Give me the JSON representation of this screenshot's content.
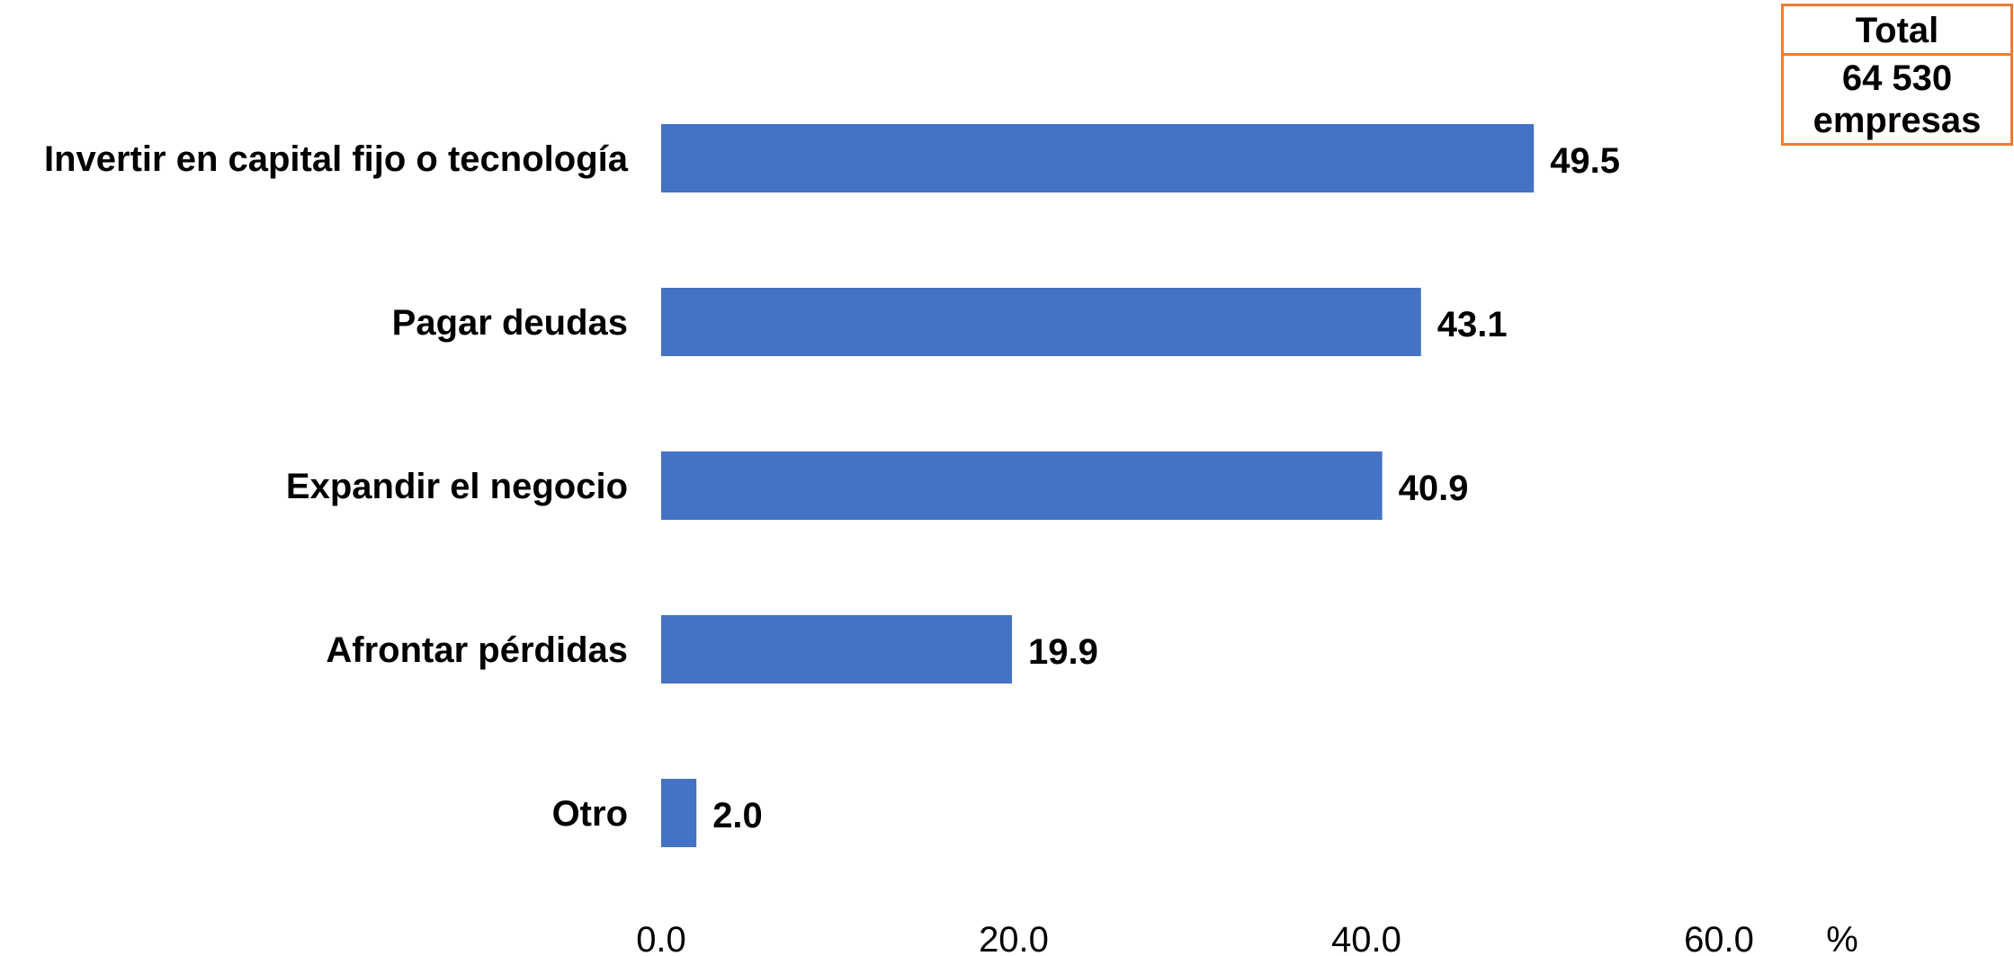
{
  "chart_data": {
    "type": "bar",
    "orientation": "horizontal",
    "categories": [
      "Invertir en capital fijo o tecnología",
      "Pagar deudas",
      "Expandir el negocio",
      "Afrontar pérdidas",
      "Otro"
    ],
    "values": [
      49.5,
      43.1,
      40.9,
      19.9,
      2.0
    ],
    "value_labels": [
      "49.5",
      "43.1",
      "40.9",
      "19.9",
      "2.0"
    ],
    "x_ticks": [
      "0.0",
      "20.0",
      "40.0",
      "60.0"
    ],
    "x_tick_values": [
      0,
      20,
      40,
      60
    ],
    "xlim": [
      0,
      60
    ],
    "x_unit": "%",
    "grid": false,
    "legend": "none",
    "bar_color": "#4472c4"
  },
  "total_box": {
    "heading": "Total",
    "count": "64 530",
    "unit": "empresas",
    "border_color": "#ed7d31"
  }
}
